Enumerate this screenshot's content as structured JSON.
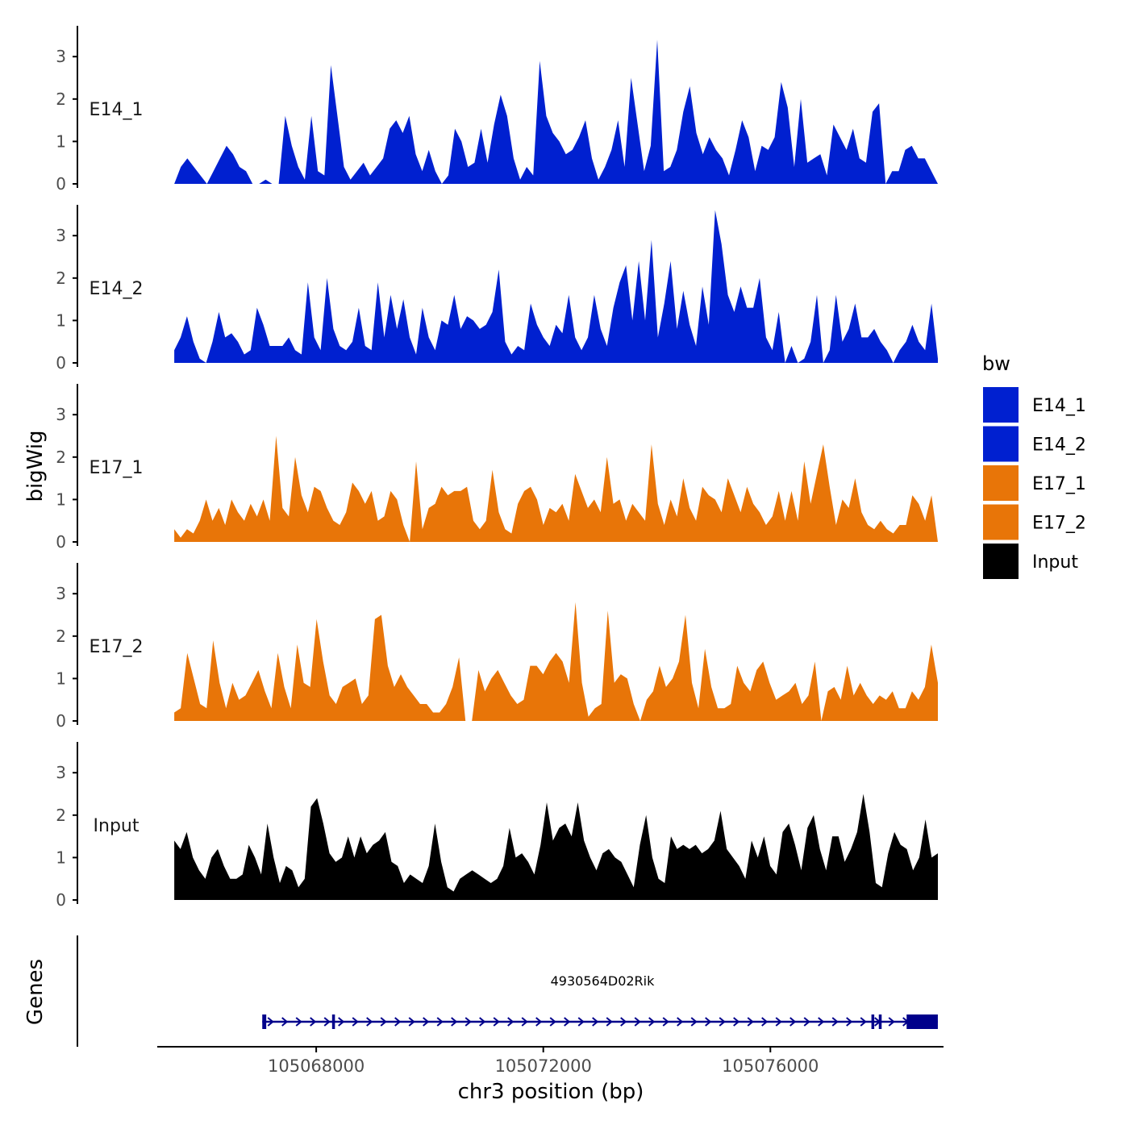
{
  "chart_data": {
    "type": "area",
    "facet_axis_title": "bigWig",
    "genes_axis_title": "Genes",
    "xlabel": "chr3 position (bp)",
    "xlim": [
      105065200,
      105079050
    ],
    "x_ticks": [
      105068000,
      105072000,
      105076000
    ],
    "x_tick_labels": [
      "105068000",
      "105072000",
      "105076000"
    ],
    "ylim": [
      0,
      3.7
    ],
    "y_ticks": [
      0,
      1,
      2,
      3
    ],
    "y_tick_labels": [
      "0",
      "1",
      "2",
      "3"
    ],
    "track_range": [
      105065500,
      105078950
    ],
    "legend": {
      "title": "bw",
      "items": [
        {
          "label": "E14_1",
          "color": "#0020D0"
        },
        {
          "label": "E14_2",
          "color": "#0020D0"
        },
        {
          "label": "E17_1",
          "color": "#E87508"
        },
        {
          "label": "E17_2",
          "color": "#E87508"
        },
        {
          "label": "Input",
          "color": "#000000"
        }
      ]
    },
    "series": [
      {
        "name": "E14_1",
        "color": "#0020D0",
        "values": [
          0,
          0.4,
          0.6,
          0.4,
          0.2,
          0,
          0.3,
          0.6,
          0.9,
          0.7,
          0.4,
          0.3,
          0,
          0,
          0.1,
          0,
          0,
          1.6,
          0.9,
          0.4,
          0.1,
          1.6,
          0.3,
          0.2,
          2.8,
          1.6,
          0.4,
          0.1,
          0.3,
          0.5,
          0.2,
          0.4,
          0.6,
          1.3,
          1.5,
          1.2,
          1.6,
          0.7,
          0.3,
          0.8,
          0.3,
          0,
          0.2,
          1.3,
          1.0,
          0.4,
          0.5,
          1.3,
          0.5,
          1.4,
          2.1,
          1.6,
          0.6,
          0.1,
          0.4,
          0.2,
          2.9,
          1.6,
          1.2,
          1.0,
          0.7,
          0.8,
          1.1,
          1.5,
          0.6,
          0.1,
          0.4,
          0.8,
          1.5,
          0.4,
          2.5,
          1.4,
          0.3,
          0.9,
          3.4,
          0.3,
          0.4,
          0.8,
          1.7,
          2.3,
          1.2,
          0.7,
          1.1,
          0.8,
          0.6,
          0.2,
          0.8,
          1.5,
          1.1,
          0.3,
          0.9,
          0.8,
          1.1,
          2.4,
          1.8,
          0.4,
          2.0,
          0.5,
          0.6,
          0.7,
          0.2,
          1.4,
          1.1,
          0.8,
          1.3,
          0.6,
          0.5,
          1.7,
          1.9,
          0,
          0.3,
          0.3,
          0.8,
          0.9,
          0.6,
          0.6,
          0.3,
          0
        ]
      },
      {
        "name": "E14_2",
        "color": "#0020D0",
        "values": [
          0.3,
          0.6,
          1.1,
          0.5,
          0.1,
          0,
          0.5,
          1.2,
          0.6,
          0.7,
          0.5,
          0.2,
          0.3,
          1.3,
          0.9,
          0.4,
          0.4,
          0.4,
          0.6,
          0.3,
          0.2,
          1.9,
          0.6,
          0.3,
          2.0,
          0.8,
          0.4,
          0.3,
          0.5,
          1.3,
          0.4,
          0.3,
          1.9,
          0.6,
          1.6,
          0.8,
          1.5,
          0.6,
          0.2,
          1.3,
          0.6,
          0.3,
          1.0,
          0.9,
          1.6,
          0.8,
          1.1,
          1.0,
          0.8,
          0.9,
          1.2,
          2.2,
          0.5,
          0.2,
          0.4,
          0.3,
          1.4,
          0.9,
          0.6,
          0.4,
          0.9,
          0.7,
          1.6,
          0.6,
          0.3,
          0.6,
          1.6,
          0.8,
          0.4,
          1.3,
          1.9,
          2.3,
          1.0,
          2.4,
          1.0,
          2.9,
          0.6,
          1.4,
          2.4,
          0.8,
          1.7,
          0.9,
          0.4,
          1.8,
          0.9,
          3.6,
          2.8,
          1.6,
          1.2,
          1.8,
          1.3,
          1.3,
          2.0,
          0.6,
          0.3,
          1.2,
          0,
          0.4,
          0,
          0.1,
          0.5,
          1.6,
          0,
          0.3,
          1.6,
          0.5,
          0.8,
          1.4,
          0.6,
          0.6,
          0.8,
          0.5,
          0.3,
          0,
          0.3,
          0.5,
          0.9,
          0.5,
          0.3,
          1.4,
          0.1
        ]
      },
      {
        "name": "E17_1",
        "color": "#E87508",
        "values": [
          0.3,
          0.1,
          0.3,
          0.2,
          0.5,
          1.0,
          0.5,
          0.8,
          0.4,
          1.0,
          0.7,
          0.5,
          0.9,
          0.6,
          1.0,
          0.5,
          2.5,
          0.8,
          0.6,
          2.0,
          1.1,
          0.7,
          1.3,
          1.2,
          0.8,
          0.5,
          0.4,
          0.7,
          1.4,
          1.2,
          0.9,
          1.2,
          0.5,
          0.6,
          1.2,
          1.0,
          0.4,
          0,
          1.9,
          0.3,
          0.8,
          0.9,
          1.3,
          1.1,
          1.2,
          1.2,
          1.3,
          0.5,
          0.3,
          0.5,
          1.7,
          0.7,
          0.3,
          0.2,
          0.9,
          1.2,
          1.3,
          1.0,
          0.4,
          0.8,
          0.7,
          0.9,
          0.5,
          1.6,
          1.2,
          0.8,
          1.0,
          0.7,
          2.0,
          0.9,
          1.0,
          0.5,
          0.9,
          0.7,
          0.5,
          2.3,
          0.9,
          0.4,
          1.0,
          0.6,
          1.5,
          0.8,
          0.5,
          1.3,
          1.1,
          1.0,
          0.7,
          1.5,
          1.1,
          0.7,
          1.3,
          0.9,
          0.7,
          0.4,
          0.6,
          1.2,
          0.5,
          1.2,
          0.5,
          1.9,
          0.9,
          1.6,
          2.3,
          1.3,
          0.4,
          1.0,
          0.8,
          1.5,
          0.7,
          0.4,
          0.3,
          0.5,
          0.3,
          0.2,
          0.4,
          0.4,
          1.1,
          0.9,
          0.5,
          1.1,
          0
        ]
      },
      {
        "name": "E17_2",
        "color": "#E87508",
        "values": [
          0.2,
          0.3,
          1.6,
          1.0,
          0.4,
          0.3,
          1.9,
          0.9,
          0.3,
          0.9,
          0.5,
          0.6,
          0.9,
          1.2,
          0.7,
          0.3,
          1.6,
          0.8,
          0.3,
          1.8,
          0.9,
          0.8,
          2.4,
          1.4,
          0.6,
          0.4,
          0.8,
          0.9,
          1.0,
          0.4,
          0.6,
          2.4,
          2.5,
          1.3,
          0.8,
          1.1,
          0.8,
          0.6,
          0.4,
          0.4,
          0.2,
          0.2,
          0.4,
          0.8,
          1.5,
          0,
          0,
          1.2,
          0.7,
          1.0,
          1.2,
          0.9,
          0.6,
          0.4,
          0.5,
          1.3,
          1.3,
          1.1,
          1.4,
          1.6,
          1.4,
          0.9,
          2.8,
          0.9,
          0.1,
          0.3,
          0.4,
          2.6,
          0.9,
          1.1,
          1.0,
          0.4,
          0,
          0.5,
          0.7,
          1.3,
          0.8,
          1.0,
          1.4,
          2.5,
          0.9,
          0.3,
          1.7,
          0.8,
          0.3,
          0.3,
          0.4,
          1.3,
          0.9,
          0.7,
          1.2,
          1.4,
          0.9,
          0.5,
          0.6,
          0.7,
          0.9,
          0.4,
          0.6,
          1.4,
          0,
          0.7,
          0.8,
          0.5,
          1.3,
          0.6,
          0.9,
          0.6,
          0.4,
          0.6,
          0.5,
          0.7,
          0.3,
          0.3,
          0.7,
          0.5,
          0.8,
          1.8,
          0.9
        ]
      },
      {
        "name": "Input",
        "color": "#000000",
        "values": [
          1.4,
          1.2,
          1.6,
          1.0,
          0.7,
          0.5,
          1.0,
          1.2,
          0.8,
          0.5,
          0.5,
          0.6,
          1.3,
          1.0,
          0.6,
          1.8,
          1.0,
          0.4,
          0.8,
          0.7,
          0.3,
          0.5,
          2.2,
          2.4,
          1.8,
          1.1,
          0.9,
          1.0,
          1.5,
          1.0,
          1.5,
          1.1,
          1.3,
          1.4,
          1.6,
          0.9,
          0.8,
          0.4,
          0.6,
          0.5,
          0.4,
          0.8,
          1.8,
          0.9,
          0.3,
          0.2,
          0.5,
          0.6,
          0.7,
          0.6,
          0.5,
          0.4,
          0.5,
          0.8,
          1.7,
          1.0,
          1.1,
          0.9,
          0.6,
          1.3,
          2.3,
          1.4,
          1.7,
          1.8,
          1.5,
          2.3,
          1.4,
          1.0,
          0.7,
          1.1,
          1.2,
          1.0,
          0.9,
          0.6,
          0.3,
          1.3,
          2.0,
          1.0,
          0.5,
          0.4,
          1.5,
          1.2,
          1.3,
          1.2,
          1.3,
          1.1,
          1.2,
          1.4,
          2.1,
          1.2,
          1.0,
          0.8,
          0.5,
          1.4,
          1.0,
          1.5,
          0.8,
          0.6,
          1.6,
          1.8,
          1.3,
          0.7,
          1.7,
          2.0,
          1.2,
          0.7,
          1.5,
          1.5,
          0.9,
          1.2,
          1.6,
          2.5,
          1.6,
          0.4,
          0.3,
          1.1,
          1.6,
          1.3,
          1.2,
          0.7,
          1.0,
          1.9,
          1.0,
          1.1
        ]
      }
    ],
    "gene": {
      "name": "4930564D02Rik",
      "color": "#00008B",
      "start": 105067050,
      "end": 105078950,
      "strand": "+",
      "exons": [
        [
          105067050,
          105067120
        ],
        [
          105068280,
          105068330
        ],
        [
          105077780,
          105077830
        ],
        [
          105077910,
          105077960
        ],
        [
          105078400,
          105078950
        ]
      ]
    }
  }
}
